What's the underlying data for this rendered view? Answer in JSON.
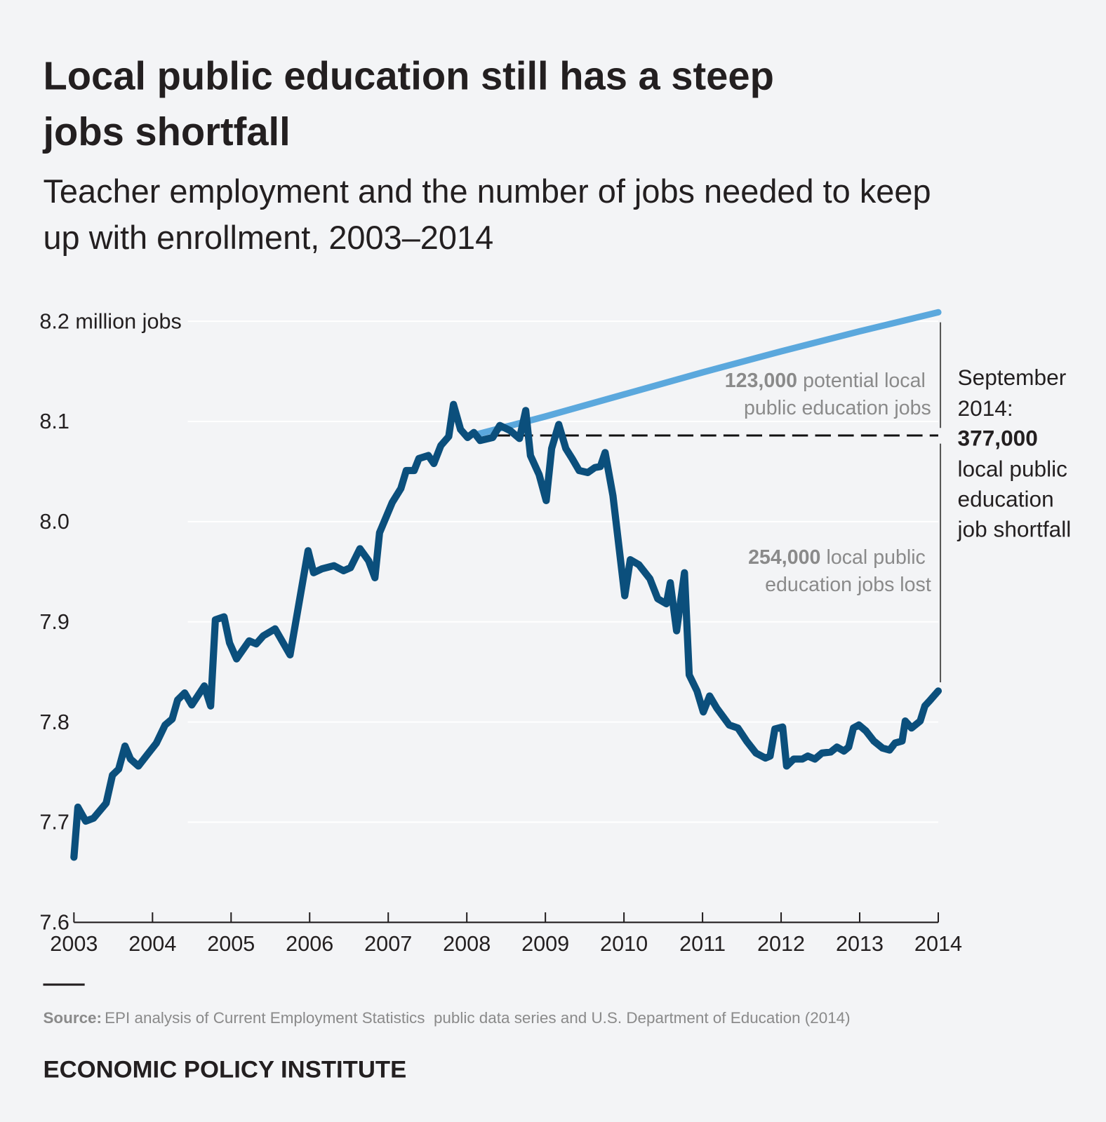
{
  "chart_data": {
    "type": "line",
    "title": [
      "Local public education still has a steep",
      "jobs shortfall"
    ],
    "subtitle": [
      "Teacher employment and the number of jobs needed to keep",
      "up with enrollment, 2003–2014"
    ],
    "xlim": [
      2003,
      2014
    ],
    "xticks": [
      2003,
      2004,
      2005,
      2006,
      2007,
      2008,
      2009,
      2010,
      2011,
      2012,
      2013,
      2014
    ],
    "ylim": [
      7.6,
      8.2
    ],
    "yticks": [
      7.6,
      7.7,
      7.8,
      7.9,
      {
        "value": 8,
        "label": "8.0"
      },
      8.1,
      {
        "value": 8.2,
        "label": "8.2 million jobs"
      }
    ],
    "grid": true,
    "series": [
      {
        "color": "#0b4f7c",
        "x": [
          2003,
          2003.05,
          2003.15,
          2003.25,
          2003.41,
          2003.49,
          2003.57,
          2003.65,
          2003.72,
          2003.82,
          2003.93,
          2004.05,
          2004.16,
          2004.25,
          2004.32,
          2004.41,
          2004.5,
          2004.66,
          2004.74,
          2004.8,
          2004.91,
          2004.98,
          2005.07,
          2005.23,
          2005.32,
          2005.41,
          2005.56,
          2005.75,
          2005.98,
          2006.05,
          2006.16,
          2006.31,
          2006.43,
          2006.52,
          2006.64,
          2006.75,
          2006.83,
          2006.89,
          2007.05,
          2007.16,
          2007.23,
          2007.33,
          2007.39,
          2007.51,
          2007.58,
          2007.67,
          2007.77,
          2007.83,
          2007.92,
          2008.01,
          2008.09,
          2008.17,
          2008.33,
          2008.42,
          2008.55,
          2008.67,
          2008.75,
          2008.81,
          2008.92,
          2009.01,
          2009.08,
          2009.17,
          2009.26,
          2009.34,
          2009.43,
          2009.54,
          2009.63,
          2009.7,
          2009.76,
          2009.86,
          2010.01,
          2010.08,
          2010.19,
          2010.33,
          2010.43,
          2010.54,
          2010.59,
          2010.67,
          2010.77,
          2010.83,
          2010.93,
          2011.01,
          2011.09,
          2011.18,
          2011.34,
          2011.45,
          2011.56,
          2011.68,
          2011.8,
          2011.86,
          2011.92,
          2012.02,
          2012.07,
          2012.16,
          2012.27,
          2012.34,
          2012.43,
          2012.52,
          2012.63,
          2012.71,
          2012.8,
          2012.86,
          2012.92,
          2012.99,
          2013.08,
          2013.18,
          2013.29,
          2013.38,
          2013.45,
          2013.54,
          2013.58,
          2013.66,
          2013.77,
          2013.83,
          2013.9,
          2014
        ],
        "values": [
          7.665,
          7.715,
          7.701,
          7.704,
          7.719,
          7.747,
          7.753,
          7.776,
          7.763,
          7.756,
          7.767,
          7.779,
          7.797,
          7.803,
          7.822,
          7.829,
          7.817,
          7.836,
          7.816,
          7.902,
          7.905,
          7.879,
          7.863,
          7.881,
          7.878,
          7.886,
          7.893,
          7.867,
          7.971,
          7.949,
          7.953,
          7.956,
          7.951,
          7.954,
          7.973,
          7.961,
          7.944,
          7.989,
          8.019,
          8.033,
          8.051,
          8.051,
          8.063,
          8.066,
          8.058,
          8.076,
          8.085,
          8.117,
          8.092,
          8.084,
          8.089,
          8.081,
          8.084,
          8.096,
          8.091,
          8.083,
          8.111,
          8.066,
          8.047,
          8.021,
          8.073,
          8.097,
          8.073,
          8.063,
          8.051,
          8.049,
          8.054,
          8.055,
          8.069,
          8.026,
          7.926,
          7.962,
          7.957,
          7.943,
          7.923,
          7.918,
          7.939,
          7.891,
          7.949,
          7.847,
          7.831,
          7.81,
          7.826,
          7.814,
          7.797,
          7.794,
          7.781,
          7.769,
          7.764,
          7.766,
          7.793,
          7.795,
          7.756,
          7.763,
          7.763,
          7.766,
          7.763,
          7.769,
          7.77,
          7.775,
          7.771,
          7.775,
          7.794,
          7.797,
          7.791,
          7.781,
          7.774,
          7.772,
          7.779,
          7.781,
          7.801,
          7.794,
          7.801,
          7.816,
          7.822,
          7.831
        ]
      },
      {
        "color": "#5ba8dd",
        "x": [
          2008.12,
          2009,
          2010,
          2011,
          2012,
          2013,
          2014
        ],
        "values": [
          8.087,
          8.105,
          8.127,
          8.149,
          8.17,
          8.19,
          8.209
        ]
      }
    ],
    "reference_line": {
      "x": 2008.35,
      "y": 8.086
    },
    "annotations": [
      {
        "bold": "123,000",
        "lines": [
          "potential local",
          "public education jobs"
        ]
      },
      {
        "bold": "254,000",
        "lines": [
          "local public",
          "education jobs lost"
        ]
      },
      {
        "before": [
          "September",
          "2014:"
        ],
        "bold": "377,000",
        "lines": [
          "local public",
          "education",
          "job shortfall"
        ]
      }
    ],
    "source_label": "Source:",
    "source": "EPI analysis of Current Employment Statistics  public data series and U.S. Department of Education (2014)",
    "publisher": "ECONOMIC POLICY INSTITUTE"
  }
}
